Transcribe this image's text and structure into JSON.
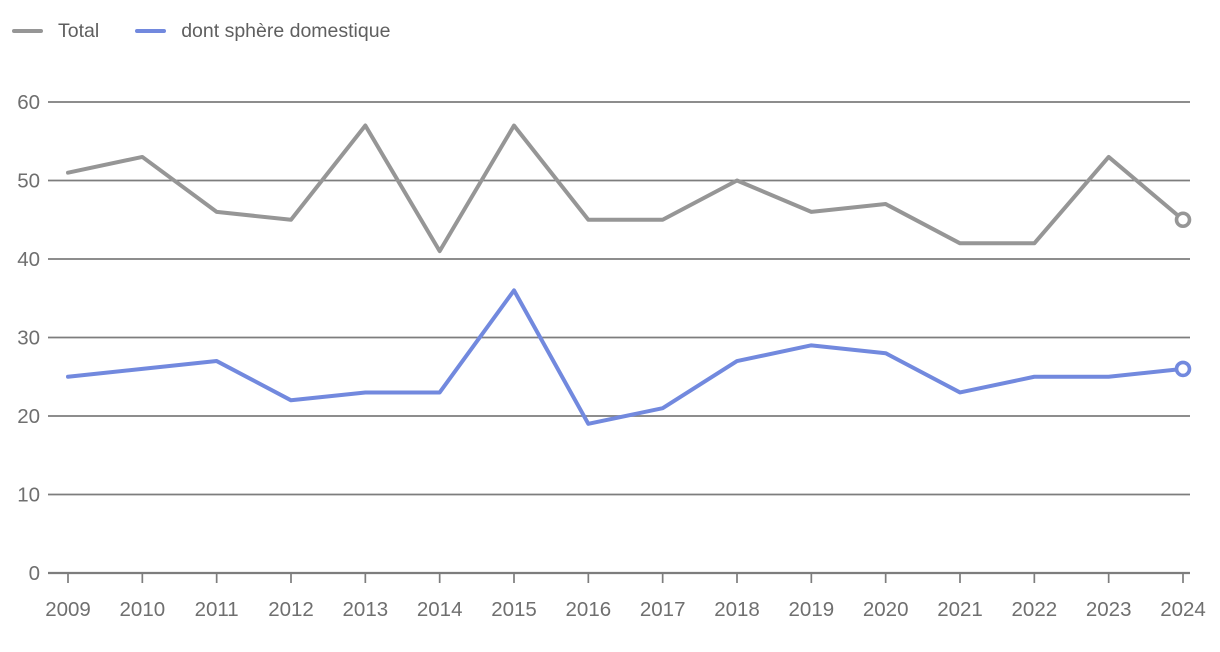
{
  "chart_data": {
    "type": "line",
    "title": "",
    "xlabel": "",
    "ylabel": "",
    "x": [
      2009,
      2010,
      2011,
      2012,
      2013,
      2014,
      2015,
      2016,
      2017,
      2018,
      2019,
      2020,
      2021,
      2022,
      2023,
      2024
    ],
    "series": [
      {
        "name": "Total",
        "color": "#969696",
        "values": [
          51,
          53,
          46,
          45,
          57,
          41,
          57,
          45,
          45,
          50,
          46,
          47,
          42,
          42,
          53,
          45
        ],
        "end_marker": "open-circle"
      },
      {
        "name": "dont sphère domestique",
        "color": "#7289DE",
        "values": [
          25,
          26,
          27,
          22,
          23,
          23,
          36,
          19,
          21,
          27,
          29,
          28,
          23,
          25,
          25,
          26
        ],
        "end_marker": "open-circle"
      }
    ],
    "ylim": [
      0,
      60
    ],
    "yticks": [
      0,
      10,
      20,
      30,
      40,
      50,
      60
    ],
    "grid": true,
    "grid_color": "#7d7d7d",
    "text_color": "#6f6f6f",
    "background": "#ffffff",
    "legend_position": "top-left"
  }
}
